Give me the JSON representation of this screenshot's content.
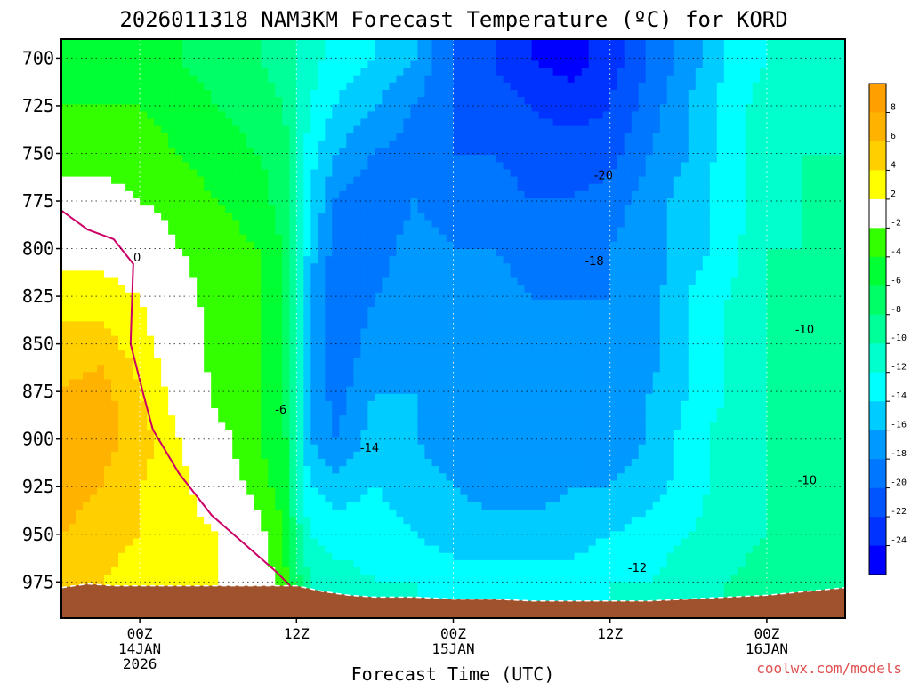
{
  "chart_data": {
    "type": "heatmap",
    "title": "2026011318 NAM3KM Forecast Temperature (ºC) for KORD",
    "xlabel": "Forecast Time (UTC)",
    "ylabel": "",
    "y_axis": {
      "ylim": [
        690,
        994
      ],
      "ticks": [
        700,
        725,
        750,
        775,
        800,
        825,
        850,
        875,
        900,
        925,
        950,
        975
      ]
    },
    "x_axis": {
      "range_hours": [
        18,
        78
      ],
      "ticks": [
        {
          "hour": 24,
          "line1": "00Z",
          "line2": "14JAN",
          "line3": "2026"
        },
        {
          "hour": 36,
          "line1": "12Z",
          "line2": "",
          "line3": ""
        },
        {
          "hour": 48,
          "line1": "00Z",
          "line2": "15JAN",
          "line3": ""
        },
        {
          "hour": 60,
          "line1": "12Z",
          "line2": "",
          "line3": ""
        },
        {
          "hour": 72,
          "line1": "00Z",
          "line2": "16JAN",
          "line3": ""
        }
      ]
    },
    "grid": true,
    "legend": {
      "placement": "right",
      "bins": [
        {
          "lo": 8,
          "hi": 10,
          "color": "#ff9f00"
        },
        {
          "lo": 6,
          "hi": 8,
          "color": "#ffb300"
        },
        {
          "lo": 4,
          "hi": 6,
          "color": "#ffcf00"
        },
        {
          "lo": 2,
          "hi": 4,
          "color": "#ffff00"
        },
        {
          "lo": -2,
          "hi": 2,
          "color": "#ffffff"
        },
        {
          "lo": -4,
          "hi": -2,
          "color": "#33ff00"
        },
        {
          "lo": -6,
          "hi": -4,
          "color": "#00ff33"
        },
        {
          "lo": -8,
          "hi": -6,
          "color": "#00ff66"
        },
        {
          "lo": -10,
          "hi": -8,
          "color": "#00ff99"
        },
        {
          "lo": -12,
          "hi": -10,
          "color": "#00ffcc"
        },
        {
          "lo": -14,
          "hi": -12,
          "color": "#00ffff"
        },
        {
          "lo": -16,
          "hi": -14,
          "color": "#00ccff"
        },
        {
          "lo": -18,
          "hi": -16,
          "color": "#0099ff"
        },
        {
          "lo": -20,
          "hi": -18,
          "color": "#0077ff"
        },
        {
          "lo": -22,
          "hi": -20,
          "color": "#0055ff"
        },
        {
          "lo": -24,
          "hi": -22,
          "color": "#0033ff"
        },
        {
          "lo": -26,
          "hi": -24,
          "color": "#0000ff"
        }
      ],
      "tick_labels": [
        "8",
        "6",
        "4",
        "2",
        "-2",
        "-4",
        "-6",
        "-8",
        "-10",
        "-12",
        "-14",
        "-16",
        "-18",
        "-20",
        "-22",
        "-24"
      ]
    },
    "contour_labels": [
      {
        "text": "0",
        "hour": 23.8,
        "level": 805
      },
      {
        "text": "-6",
        "hour": 34.8,
        "level": 885
      },
      {
        "text": "-14",
        "hour": 41.6,
        "level": 905
      },
      {
        "text": "-20",
        "hour": 59.5,
        "level": 762
      },
      {
        "text": "-18",
        "hour": 58.8,
        "level": 807
      },
      {
        "text": "-10",
        "hour": 74.9,
        "level": 843
      },
      {
        "text": "-10",
        "hour": 75.1,
        "level": 922
      },
      {
        "text": "-12",
        "hour": 62.1,
        "level": 968
      }
    ],
    "surface_pressure": [
      {
        "hour": 18,
        "level": 978
      },
      {
        "hour": 20,
        "level": 976
      },
      {
        "hour": 22,
        "level": 977
      },
      {
        "hour": 24,
        "level": 977
      },
      {
        "hour": 27,
        "level": 977
      },
      {
        "hour": 30,
        "level": 977
      },
      {
        "hour": 33,
        "level": 977
      },
      {
        "hour": 36,
        "level": 977
      },
      {
        "hour": 38,
        "level": 980
      },
      {
        "hour": 40,
        "level": 982
      },
      {
        "hour": 42,
        "level": 983
      },
      {
        "hour": 45,
        "level": 983
      },
      {
        "hour": 48,
        "level": 984
      },
      {
        "hour": 51,
        "level": 984
      },
      {
        "hour": 54,
        "level": 985
      },
      {
        "hour": 57,
        "level": 985
      },
      {
        "hour": 60,
        "level": 985
      },
      {
        "hour": 63,
        "level": 985
      },
      {
        "hour": 66,
        "level": 984
      },
      {
        "hour": 69,
        "level": 983
      },
      {
        "hour": 72,
        "level": 982
      },
      {
        "hour": 75,
        "level": 980
      },
      {
        "hour": 78,
        "level": 978
      }
    ],
    "zero_isotherm": [
      {
        "hour": 18,
        "level": 780
      },
      {
        "hour": 20,
        "level": 790
      },
      {
        "hour": 22,
        "level": 795
      },
      {
        "hour": 23.5,
        "level": 808
      },
      {
        "hour": 23.3,
        "level": 850
      },
      {
        "hour": 24.3,
        "level": 877
      },
      {
        "hour": 25,
        "level": 895
      },
      {
        "hour": 27,
        "level": 918
      },
      {
        "hour": 29.5,
        "level": 940
      },
      {
        "hour": 32,
        "level": 955
      },
      {
        "hour": 34.5,
        "level": 970
      },
      {
        "hour": 35.5,
        "level": 977
      }
    ],
    "profiles": {
      "hours": [
        18,
        21,
        24,
        27,
        30,
        33,
        35,
        36,
        37,
        39,
        42,
        45,
        48,
        51,
        54,
        57,
        60,
        63,
        66,
        69,
        72,
        75,
        78
      ],
      "levels": [
        690,
        700,
        725,
        750,
        775,
        800,
        825,
        850,
        875,
        900,
        925,
        950,
        975,
        995
      ],
      "temps": [
        [
          -5,
          -5,
          -4,
          -3,
          -1,
          1,
          3,
          5,
          6,
          7,
          7,
          6,
          5,
          5
        ],
        [
          -5,
          -5,
          -4,
          -3,
          -1,
          1,
          3,
          5,
          7,
          7,
          6,
          5,
          4,
          4
        ],
        [
          -5,
          -5,
          -4,
          -3,
          -2,
          0,
          2,
          3,
          4,
          5,
          4,
          4,
          3,
          3
        ],
        [
          -6,
          -6,
          -5,
          -4,
          -3,
          -2,
          -1,
          0,
          1,
          2,
          3,
          3,
          3,
          3
        ],
        [
          -7,
          -7,
          -6,
          -5,
          -4,
          -3,
          -3,
          -3,
          -3,
          -1,
          0,
          2,
          2,
          2
        ],
        [
          -8,
          -8,
          -7,
          -6,
          -5,
          -4,
          -4,
          -4,
          -4,
          -4,
          -3,
          -1,
          0,
          0
        ],
        [
          -9,
          -9,
          -8,
          -7,
          -7,
          -6,
          -6,
          -6,
          -6,
          -5,
          -5,
          -4,
          -3,
          -3
        ],
        [
          -10,
          -10,
          -10,
          -9,
          -9,
          -9,
          -9,
          -9,
          -10,
          -10,
          -10,
          -9,
          -7,
          -7
        ],
        [
          -11,
          -11,
          -12,
          -13,
          -14,
          -15,
          -16,
          -16,
          -16,
          -16,
          -14,
          -12,
          -10,
          -10
        ],
        [
          -13,
          -13,
          -14,
          -16,
          -18,
          -19,
          -20,
          -20,
          -19,
          -18,
          -15,
          -13,
          -11,
          -11
        ],
        [
          -14,
          -14,
          -16,
          -18,
          -20,
          -19,
          -18,
          -17,
          -16,
          -15,
          -14,
          -13,
          -12,
          -12
        ],
        [
          -16,
          -16,
          -18,
          -19,
          -18,
          -17,
          -17,
          -17,
          -16,
          -16,
          -15,
          -14,
          -12,
          -12
        ],
        [
          -20,
          -20,
          -20,
          -20,
          -19,
          -18,
          -17,
          -17,
          -17,
          -17,
          -16,
          -15,
          -13,
          -13
        ],
        [
          -22,
          -22,
          -21,
          -20,
          -19,
          -18,
          -17,
          -17,
          -17,
          -17,
          -17,
          -15,
          -13,
          -13
        ],
        [
          -24,
          -24,
          -22,
          -21,
          -20,
          -19,
          -18,
          -18,
          -18,
          -17,
          -17,
          -15,
          -13,
          -13
        ],
        [
          -25,
          -25,
          -23,
          -21,
          -20,
          -19,
          -18,
          -18,
          -18,
          -17,
          -16,
          -15,
          -13,
          -13
        ],
        [
          -23,
          -23,
          -22,
          -21,
          -19,
          -18,
          -18,
          -18,
          -18,
          -17,
          -16,
          -14,
          -12,
          -12
        ],
        [
          -20,
          -20,
          -19,
          -18,
          -17,
          -17,
          -17,
          -17,
          -16,
          -16,
          -15,
          -13,
          -12,
          -12
        ],
        [
          -17,
          -17,
          -16,
          -16,
          -15,
          -15,
          -14,
          -14,
          -14,
          -13,
          -13,
          -12,
          -11,
          -11
        ],
        [
          -14,
          -14,
          -13,
          -13,
          -13,
          -13,
          -12,
          -12,
          -12,
          -11,
          -11,
          -11,
          -10,
          -10
        ],
        [
          -12,
          -12,
          -11,
          -11,
          -11,
          -10,
          -10,
          -10,
          -10,
          -10,
          -10,
          -10,
          -9,
          -9
        ],
        [
          -11,
          -11,
          -11,
          -10,
          -10,
          -10,
          -10,
          -10,
          -10,
          -10,
          -10,
          -9,
          -9,
          -9
        ],
        [
          -11,
          -11,
          -11,
          -10,
          -10,
          -10,
          -10,
          -10,
          -10,
          -10,
          -10,
          -10,
          -9,
          -9
        ]
      ]
    }
  },
  "watermark": "coolwx.com/models",
  "colors": {
    "ground": "#a0522d",
    "zero_line": "#cc0066",
    "grid": "#b0b0b0",
    "watermark": "#e05050"
  }
}
